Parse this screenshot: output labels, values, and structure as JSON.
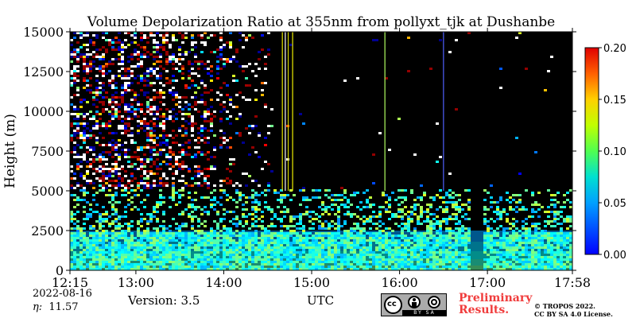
{
  "chart_data": {
    "type": "heatmap",
    "title": "Volume Depolarization Ratio at 355nm from pollyxt_tjk at Dushanbe",
    "ylabel": "Height (m)",
    "xlabel": "UTC",
    "ylim": [
      0,
      15000
    ],
    "y_ticks": [
      "0",
      "2500",
      "5000",
      "7500",
      "10000",
      "12500",
      "15000"
    ],
    "x_ticks": [
      "12:15",
      "13:00",
      "14:00",
      "15:00",
      "16:00",
      "17:00",
      "17:58"
    ],
    "xlim": [
      "12:15",
      "17:58"
    ],
    "colorbar": {
      "range": [
        0.0,
        0.2
      ],
      "ticks": [
        "0.00",
        "0.05",
        "0.10",
        "0.15",
        "0.20"
      ],
      "colormap": "jet"
    }
  },
  "footer": {
    "date": "2022-08-16",
    "eta_label": "η:",
    "eta_value": "11.57",
    "version": "Version: 3.5",
    "preliminary_line1": "Preliminary",
    "preliminary_line2": "Results.",
    "copyright_line1": "© TROPOS 2022.",
    "copyright_line2": "CC BY SA 4.0 License.",
    "cc_badge_text": "BY SA",
    "preliminary_color": "#f03c3c"
  }
}
